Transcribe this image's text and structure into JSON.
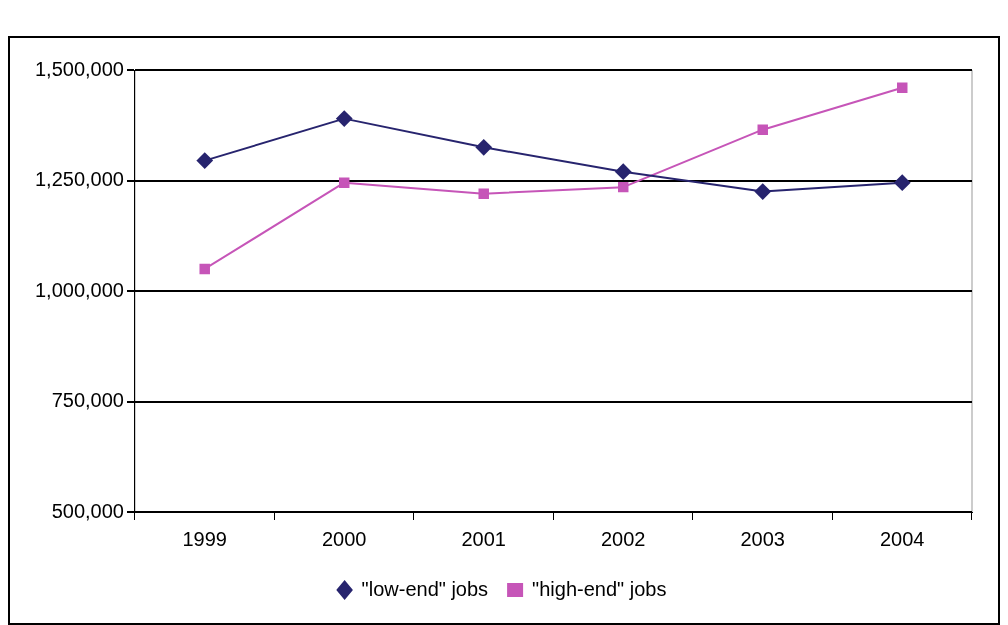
{
  "chart_data": {
    "type": "line",
    "categories": [
      "1999",
      "2000",
      "2001",
      "2002",
      "2003",
      "2004"
    ],
    "series": [
      {
        "name": "\"low-end\" jobs",
        "color": "#27246e",
        "marker": "diamond",
        "values": [
          1295000,
          1390000,
          1325000,
          1270000,
          1225000,
          1245000
        ]
      },
      {
        "name": "\"high-end\" jobs",
        "color": "#c655b8",
        "marker": "square",
        "values": [
          1050000,
          1245000,
          1220000,
          1235000,
          1365000,
          1460000
        ]
      }
    ],
    "ylim": [
      500000,
      1500000
    ],
    "yticks": [
      {
        "value": 500000,
        "label": "500,000"
      },
      {
        "value": 750000,
        "label": "750,000"
      },
      {
        "value": 1000000,
        "label": "1,000,000"
      },
      {
        "value": 1250000,
        "label": "1,250,000"
      },
      {
        "value": 1500000,
        "label": "1,500,000"
      }
    ],
    "grid": "y",
    "legend": "bottom"
  }
}
